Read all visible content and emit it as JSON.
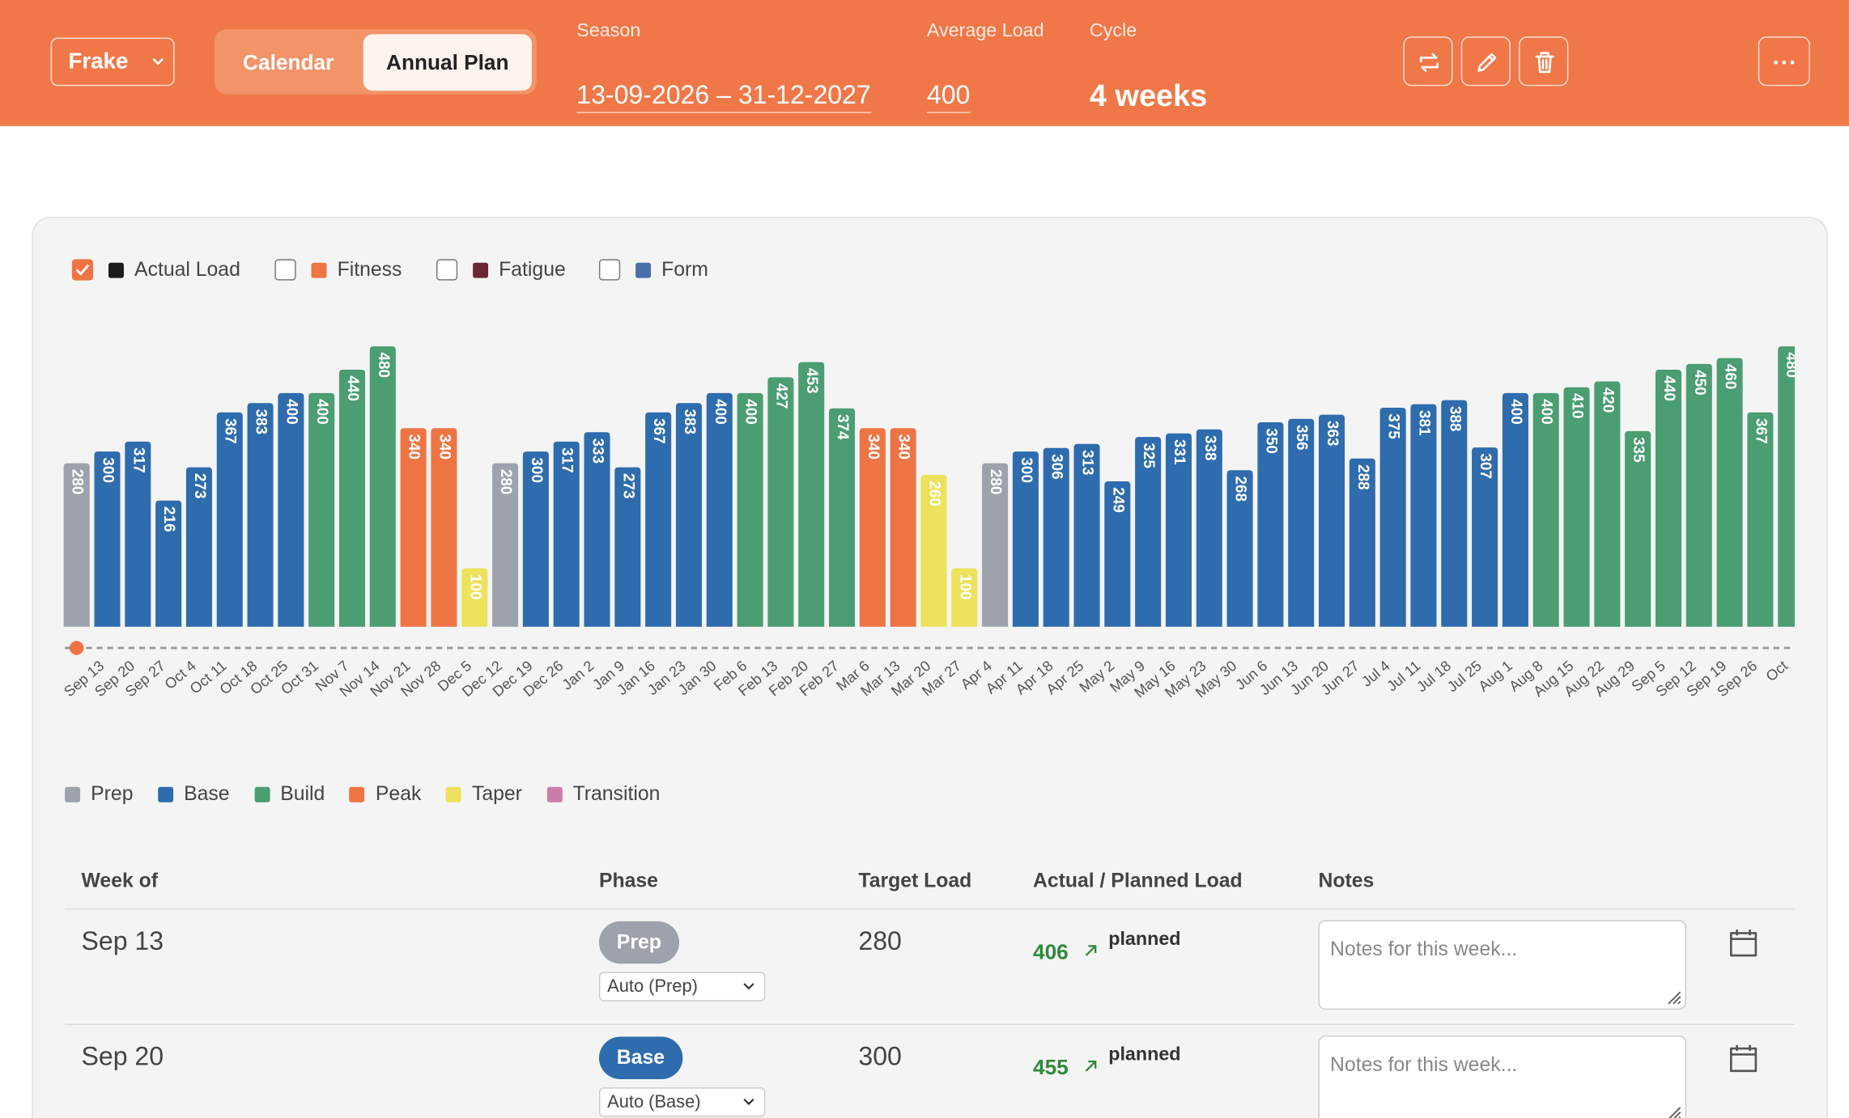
{
  "header": {
    "profile": "Frake",
    "tabs": [
      "Calendar",
      "Annual Plan"
    ],
    "active_tab": 1,
    "fields": [
      {
        "label": "Season",
        "value": "13-09-2026 – 31-12-2027"
      },
      {
        "label": "Average Load",
        "value": "400"
      },
      {
        "label": "Cycle",
        "value": "4 weeks"
      }
    ]
  },
  "legend": [
    {
      "label": "Actual Load",
      "color": "#1c1c1c",
      "checked": true
    },
    {
      "label": "Fitness",
      "color": "#ef7443",
      "checked": false
    },
    {
      "label": "Fatigue",
      "color": "#6b2737",
      "checked": false
    },
    {
      "label": "Form",
      "color": "#4a6fa8",
      "checked": false
    }
  ],
  "chart_data": {
    "type": "bar",
    "categories": [
      "Sep 13",
      "Sep 20",
      "Sep 27",
      "Oct 4",
      "Oct 11",
      "Oct 18",
      "Oct 25",
      "Oct 31",
      "Nov 7",
      "Nov 14",
      "Nov 21",
      "Nov 28",
      "Dec 5",
      "Dec 12",
      "Dec 19",
      "Dec 26",
      "Jan 2",
      "Jan 9",
      "Jan 16",
      "Jan 23",
      "Jan 30",
      "Feb 6",
      "Feb 13",
      "Feb 20",
      "Feb 27",
      "Mar 6",
      "Mar 13",
      "Mar 20",
      "Mar 27",
      "Apr 4",
      "Apr 11",
      "Apr 18",
      "Apr 25",
      "May 2",
      "May 9",
      "May 16",
      "May 23",
      "May 30",
      "Jun 6",
      "Jun 13",
      "Jun 20",
      "Jun 27",
      "Jul 4",
      "Jul 11",
      "Jul 18",
      "Jul 25",
      "Aug 1",
      "Aug 8",
      "Aug 15",
      "Aug 22",
      "Aug 29",
      "Sep 5",
      "Sep 12",
      "Sep 19",
      "Sep 26",
      "Oct",
      null
    ],
    "values": [
      280,
      300,
      317,
      216,
      273,
      367,
      383,
      400,
      400,
      440,
      480,
      340,
      340,
      100,
      280,
      300,
      317,
      333,
      273,
      367,
      383,
      400,
      400,
      427,
      453,
      374,
      340,
      340,
      260,
      100,
      280,
      300,
      306,
      313,
      249,
      325,
      331,
      338,
      268,
      350,
      356,
      363,
      288,
      375,
      381,
      388,
      307,
      400,
      400,
      410,
      420,
      335,
      440,
      450,
      460,
      367,
      480
    ],
    "phases": [
      "Prep",
      "Base",
      "Base",
      "Base",
      "Base",
      "Base",
      "Base",
      "Base",
      "Build",
      "Build",
      "Build",
      "Peak",
      "Peak",
      "Taper",
      "Prep",
      "Base",
      "Base",
      "Base",
      "Base",
      "Base",
      "Base",
      "Base",
      "Build",
      "Build",
      "Build",
      "Build",
      "Peak",
      "Peak",
      "Taper",
      "Taper",
      "Prep",
      "Base",
      "Base",
      "Base",
      "Base",
      "Base",
      "Base",
      "Base",
      "Base",
      "Base",
      "Base",
      "Base",
      "Base",
      "Base",
      "Base",
      "Base",
      "Base",
      "Base",
      "Build",
      "Build",
      "Build",
      "Build",
      "Build",
      "Build",
      "Build",
      "Build",
      "Build"
    ],
    "ylim": [
      0,
      480
    ]
  },
  "phase_legend": [
    {
      "name": "Prep",
      "color": "#9da2ac"
    },
    {
      "name": "Base",
      "color": "#2e6cae"
    },
    {
      "name": "Build",
      "color": "#4b9d72"
    },
    {
      "name": "Peak",
      "color": "#ee7543"
    },
    {
      "name": "Taper",
      "color": "#ece25c"
    },
    {
      "name": "Transition",
      "color": "#c97caa"
    }
  ],
  "table": {
    "columns": [
      "Week of",
      "Phase",
      "Target Load",
      "Actual / Planned Load",
      "Notes"
    ],
    "rows": [
      {
        "week": "Sep 13",
        "phase": "Prep",
        "phase_select": "Auto (Prep)",
        "target": 280,
        "actual": 406,
        "status": "planned",
        "notes_placeholder": "Notes for this week..."
      },
      {
        "week": "Sep 20",
        "phase": "Base",
        "phase_select": "Auto (Base)",
        "target": 300,
        "actual": 455,
        "status": "planned",
        "notes_placeholder": "Notes for this week..."
      }
    ]
  }
}
